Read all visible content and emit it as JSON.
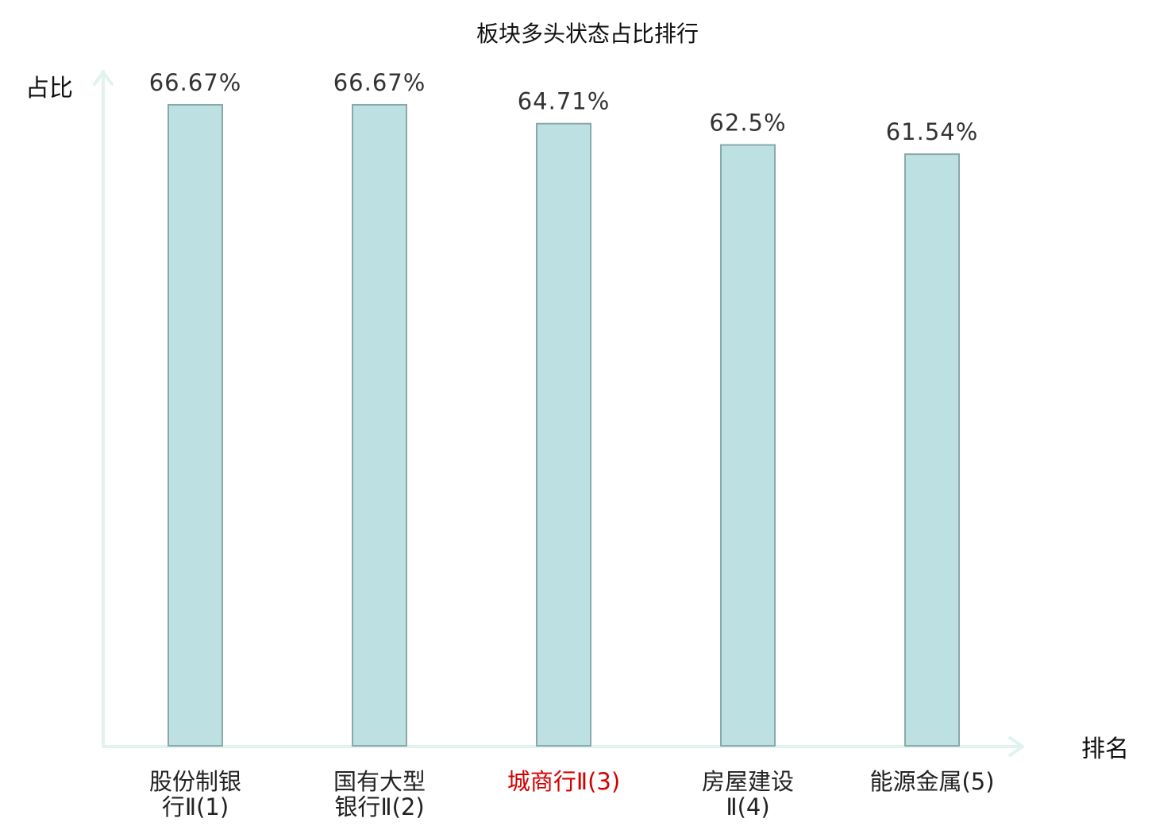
{
  "chart_data": {
    "type": "bar",
    "title": "板块多头状态占比排行",
    "ylabel": "占比",
    "xlabel": "排名",
    "ylim": [
      0,
      70
    ],
    "grid": false,
    "legend": "none",
    "bar_color": "#bde1e3",
    "bar_edge_color": "#8aa8a8",
    "axis_color": "#e0f3ef",
    "highlight_color": "#d40000",
    "categories": [
      {
        "lines": [
          "股份制银",
          "行Ⅱ(1)"
        ],
        "highlight": false
      },
      {
        "lines": [
          "国有大型",
          "银行Ⅱ(2)"
        ],
        "highlight": false
      },
      {
        "lines": [
          "城商行Ⅱ(3)"
        ],
        "highlight": true
      },
      {
        "lines": [
          "房屋建设",
          "Ⅱ(4)"
        ],
        "highlight": false
      },
      {
        "lines": [
          "能源金属(5)"
        ],
        "highlight": false
      }
    ],
    "values": [
      66.67,
      66.67,
      64.71,
      62.5,
      61.54
    ],
    "value_labels": [
      "66.67%",
      "66.67%",
      "64.71%",
      "62.5%",
      "61.54%"
    ]
  }
}
